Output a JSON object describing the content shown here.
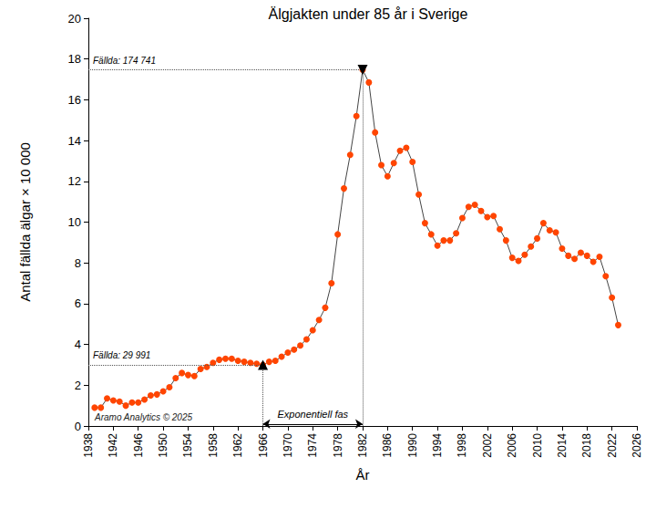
{
  "chart_data": {
    "type": "line",
    "title": "Älgjakten under 85 år i Sverige",
    "x_label": "År",
    "y_label": "Antal fällda älgar × 10 000",
    "x": [
      1939,
      1940,
      1941,
      1942,
      1943,
      1944,
      1945,
      1946,
      1947,
      1948,
      1949,
      1950,
      1951,
      1952,
      1953,
      1954,
      1955,
      1956,
      1957,
      1958,
      1959,
      1960,
      1961,
      1962,
      1963,
      1964,
      1965,
      1966,
      1967,
      1968,
      1969,
      1970,
      1971,
      1972,
      1973,
      1974,
      1975,
      1976,
      1977,
      1978,
      1979,
      1980,
      1981,
      1982,
      1983,
      1984,
      1985,
      1986,
      1987,
      1988,
      1989,
      1990,
      1991,
      1992,
      1993,
      1994,
      1995,
      1996,
      1997,
      1998,
      1999,
      2000,
      2001,
      2002,
      2003,
      2004,
      2005,
      2006,
      2007,
      2008,
      2009,
      2010,
      2011,
      2012,
      2013,
      2014,
      2015,
      2016,
      2017,
      2018,
      2019,
      2020,
      2021,
      2022,
      2023
    ],
    "values": [
      0.9,
      0.9,
      1.35,
      1.25,
      1.2,
      1.0,
      1.15,
      1.15,
      1.3,
      1.5,
      1.55,
      1.7,
      1.9,
      2.35,
      2.6,
      2.5,
      2.45,
      2.8,
      2.9,
      3.1,
      3.25,
      3.3,
      3.3,
      3.2,
      3.15,
      3.1,
      3.05,
      2.9991,
      3.15,
      3.2,
      3.4,
      3.6,
      3.75,
      3.95,
      4.25,
      4.7,
      5.2,
      5.8,
      7.0,
      9.4,
      11.65,
      13.3,
      15.2,
      17.4741,
      16.85,
      14.4,
      12.8,
      12.25,
      12.9,
      13.5,
      13.65,
      12.95,
      11.35,
      9.95,
      9.4,
      8.85,
      9.1,
      9.1,
      9.45,
      10.2,
      10.75,
      10.85,
      10.55,
      10.25,
      10.3,
      9.65,
      9.1,
      8.25,
      8.1,
      8.4,
      8.8,
      9.2,
      9.95,
      9.6,
      9.5,
      8.7,
      8.35,
      8.2,
      8.5,
      8.35,
      8.05,
      8.3,
      7.35,
      6.3,
      4.95
    ],
    "color": "#ff4500",
    "marker": "circle",
    "xlim": [
      1938,
      2026
    ],
    "xticks": [
      1938,
      1942,
      1946,
      1950,
      1954,
      1958,
      1962,
      1966,
      1970,
      1974,
      1978,
      1982,
      1986,
      1990,
      1994,
      1998,
      2002,
      2006,
      2010,
      2014,
      2018,
      2022,
      2026
    ],
    "ylim": [
      0,
      20
    ],
    "yticks": [
      0,
      2,
      4,
      6,
      8,
      10,
      12,
      14,
      16,
      18,
      20
    ],
    "grid": false,
    "annotations": [
      {
        "text": "Fällda: 174 741",
        "x": 1982,
        "y": 17.4741,
        "marker": "triangle-down"
      },
      {
        "text": "Fällda: 29 991",
        "x": 1966,
        "y": 2.9991,
        "marker": "triangle"
      },
      {
        "text": "Exponentiell fas",
        "x": [
          1966,
          1982
        ],
        "y": 0.1
      }
    ],
    "credit": "Aramo Analytics © 2025"
  }
}
